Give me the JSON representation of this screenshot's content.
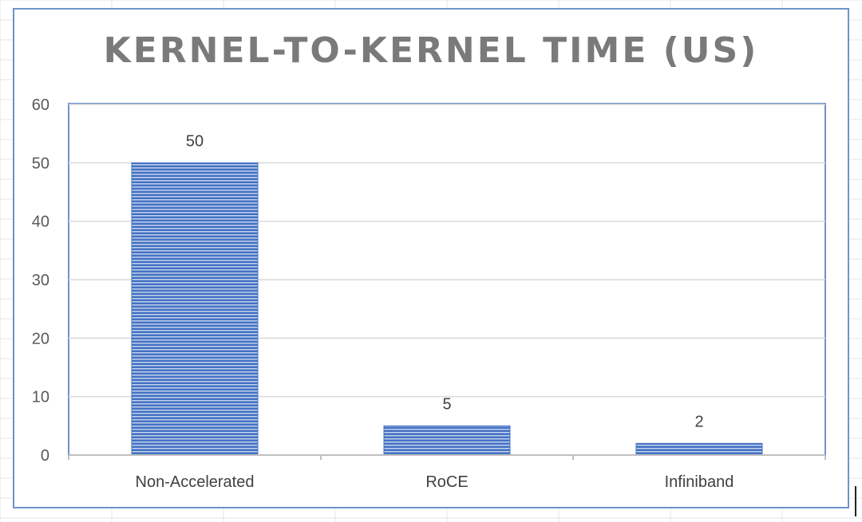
{
  "chart_data": {
    "type": "bar",
    "title": "KERNEL-TO-KERNEL TIME (US)",
    "categories": [
      "Non-Accelerated",
      "RoCE",
      "Infiniband"
    ],
    "values": [
      50,
      5,
      2
    ],
    "data_labels": [
      "50",
      "5",
      "2"
    ],
    "xlabel": "",
    "ylabel": "",
    "ylim": [
      0,
      60
    ],
    "yticks": [
      0,
      10,
      20,
      30,
      40,
      50,
      60
    ],
    "ytick_labels": [
      "0",
      "10",
      "20",
      "30",
      "40",
      "50",
      "60"
    ],
    "grid": true,
    "legend": "none",
    "bar_color": "#4472c4",
    "bar_stripe_color": "#c9d6ee",
    "frame_color": "#6f93c9",
    "gridline_color": "#d9d9d9"
  }
}
